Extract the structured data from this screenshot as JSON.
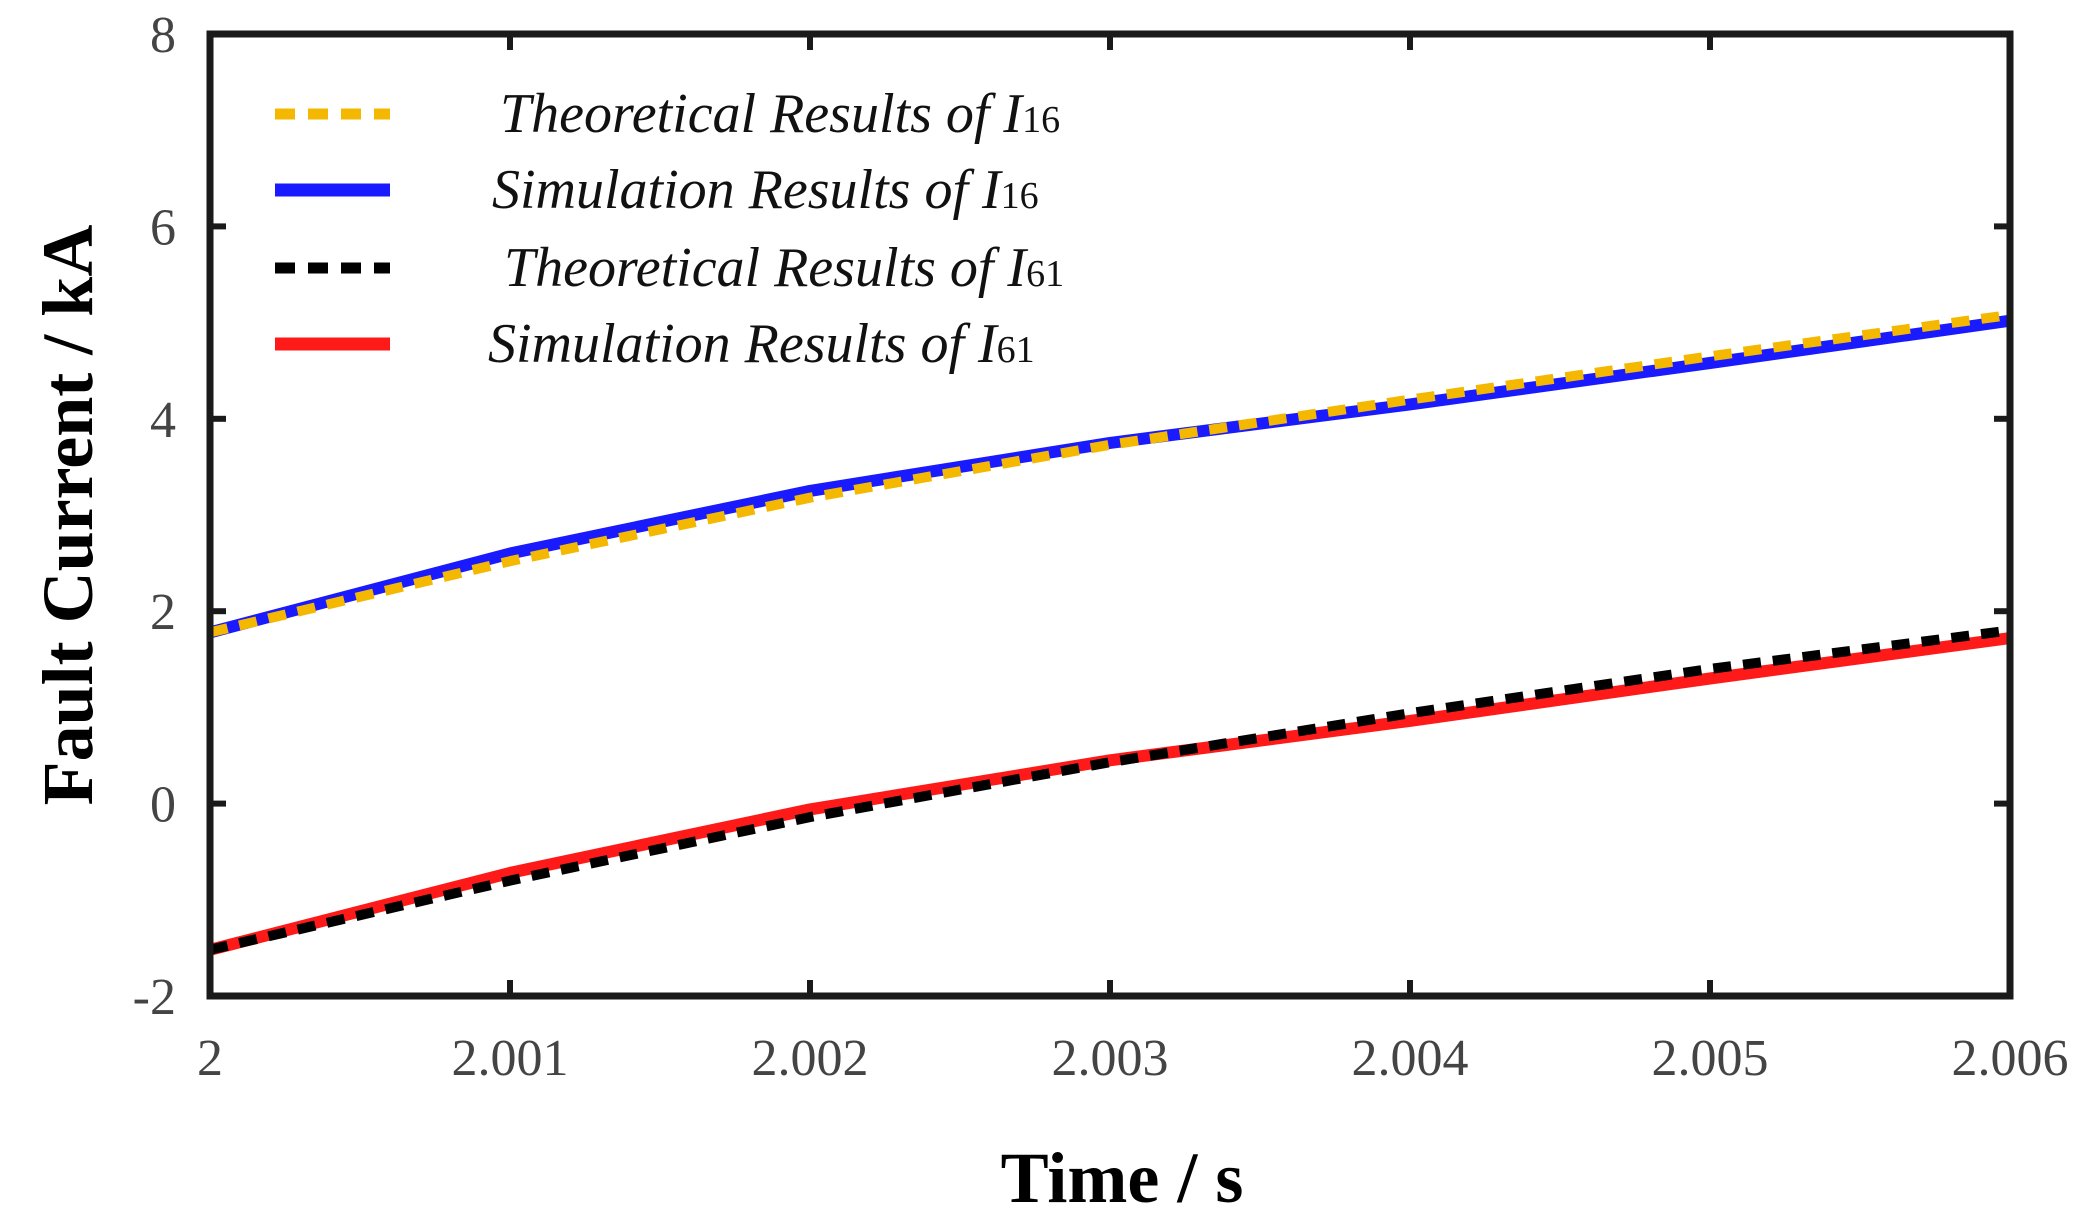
{
  "chart_data": {
    "type": "line",
    "title": "",
    "xlabel": "Time / s",
    "ylabel": "Fault Current / kA",
    "xlim": [
      2,
      2.006
    ],
    "ylim": [
      -2,
      8
    ],
    "xticks": [
      2,
      2.001,
      2.002,
      2.003,
      2.004,
      2.005,
      2.006
    ],
    "xtick_labels": [
      "2",
      "2.001",
      "2.002",
      "2.003",
      "2.004",
      "2.005",
      "2.006"
    ],
    "yticks": [
      -2,
      0,
      2,
      4,
      6,
      8
    ],
    "ytick_labels": [
      "-2",
      "0",
      "2",
      "4",
      "6",
      "8"
    ],
    "grid": false,
    "legend_position": "top-left",
    "series": [
      {
        "name": "Simulation Results of I16",
        "legend_main": "Simulation Results of I",
        "legend_sub": "16",
        "color": "#1a1aff",
        "style": "solid",
        "x": [
          2,
          2.001,
          2.002,
          2.003,
          2.004,
          2.005,
          2.006
        ],
        "y": [
          1.78,
          2.6,
          3.25,
          3.75,
          4.15,
          4.58,
          5.02
        ]
      },
      {
        "name": "Theoretical Results of I16",
        "legend_main": "Theoretical Results of I",
        "legend_sub": "16",
        "color": "#f5b800",
        "style": "dashed",
        "x": [
          2,
          2.001,
          2.002,
          2.003,
          2.004,
          2.005,
          2.006
        ],
        "y": [
          1.78,
          2.52,
          3.18,
          3.73,
          4.2,
          4.65,
          5.08
        ]
      },
      {
        "name": "Simulation Results of I61",
        "legend_main": "Simulation Results of I",
        "legend_sub": "61",
        "color": "#ff1a1a",
        "style": "solid",
        "x": [
          2,
          2.001,
          2.002,
          2.003,
          2.004,
          2.005,
          2.006
        ],
        "y": [
          -1.52,
          -0.72,
          -0.06,
          0.45,
          0.86,
          1.3,
          1.72
        ]
      },
      {
        "name": "Theoretical Results of I61",
        "legend_main": "Theoretical Results of I",
        "legend_sub": "61",
        "color": "#000000",
        "style": "dashed",
        "x": [
          2,
          2.001,
          2.002,
          2.003,
          2.004,
          2.005,
          2.006
        ],
        "y": [
          -1.52,
          -0.8,
          -0.14,
          0.43,
          0.94,
          1.4,
          1.8
        ]
      }
    ],
    "legend_order": [
      "Theoretical Results of I16",
      "Simulation Results of I16",
      "Theoretical Results of I61",
      "Simulation Results of I61"
    ]
  }
}
